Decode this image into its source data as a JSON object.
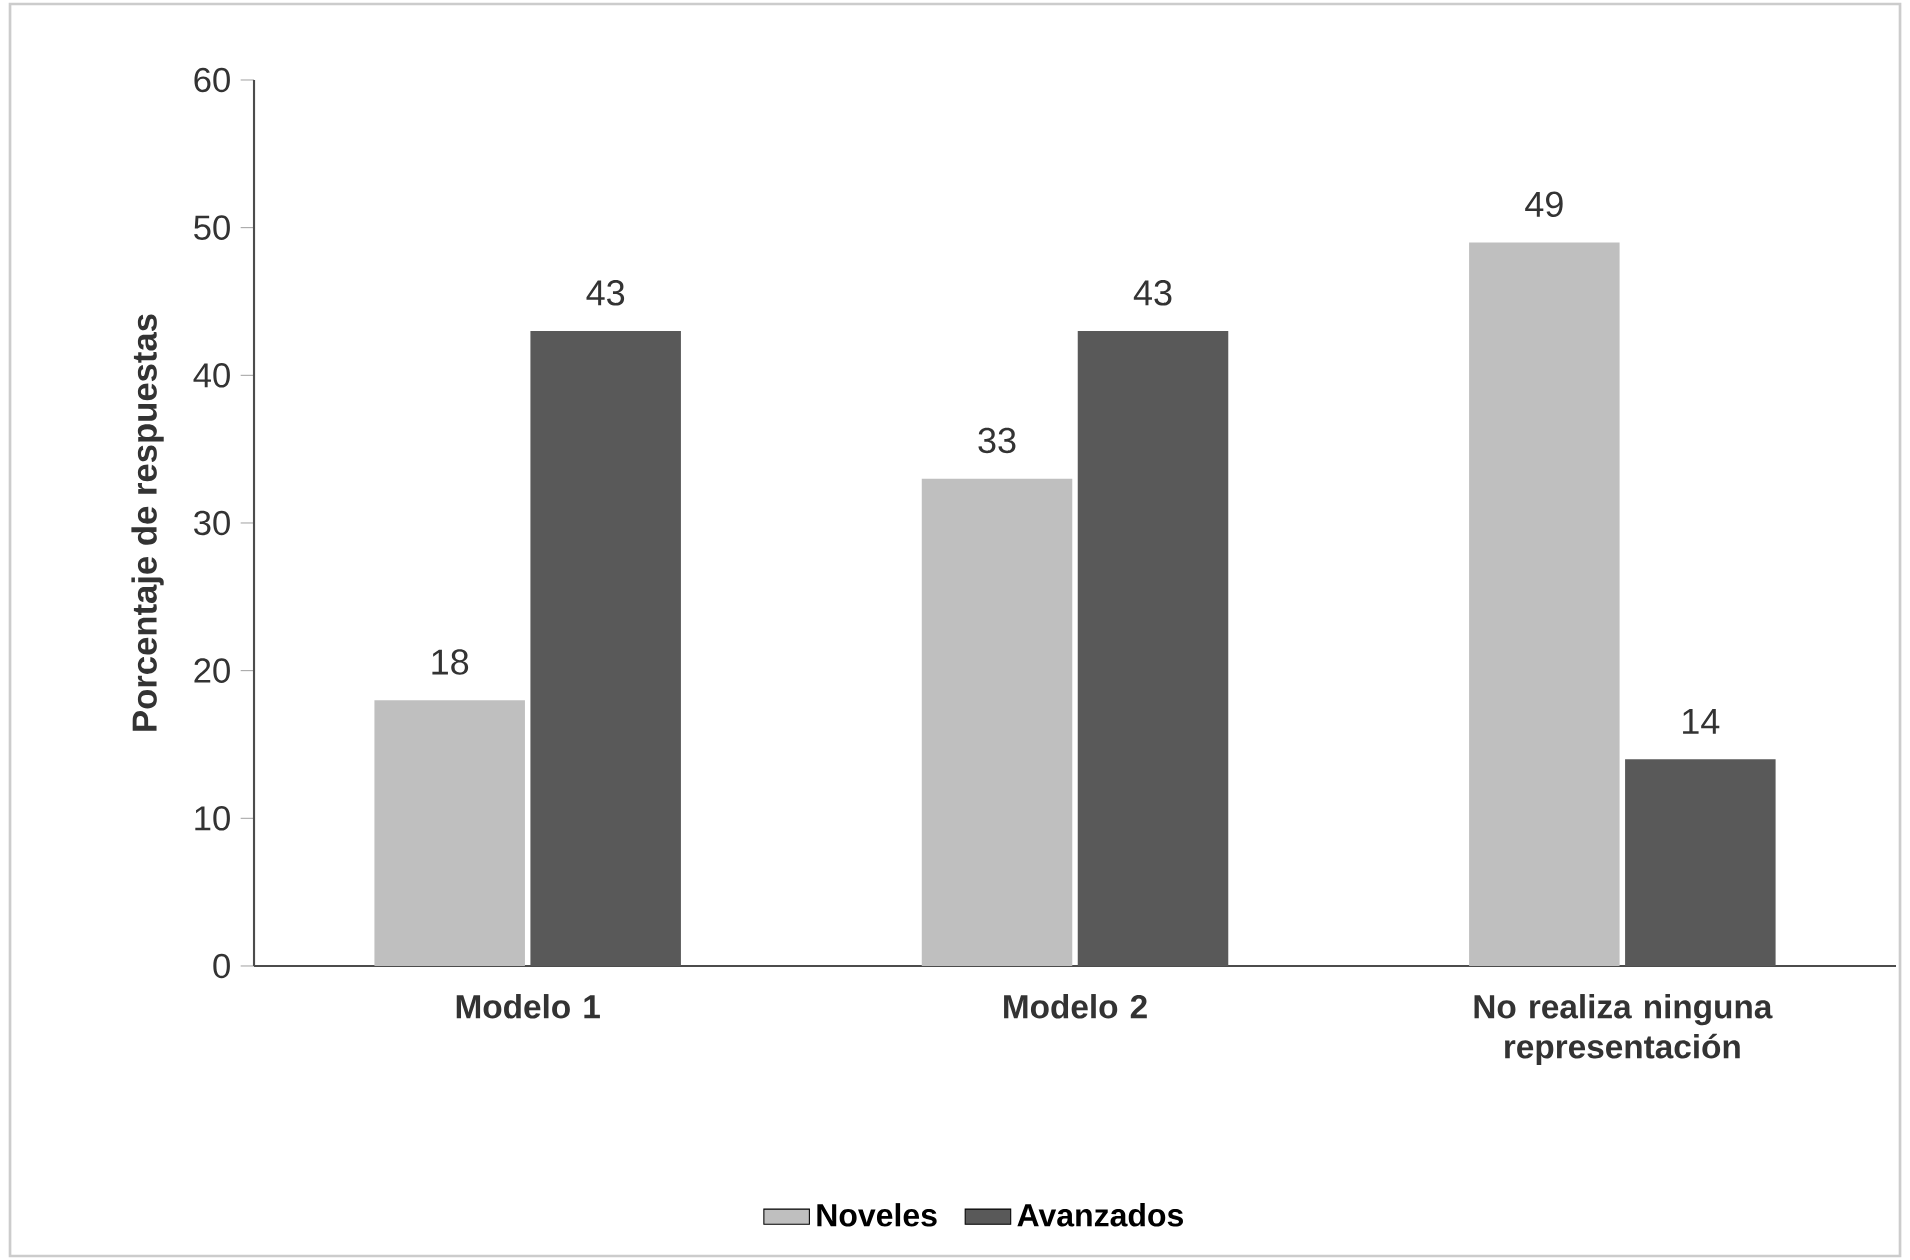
{
  "chart_data": {
    "type": "bar",
    "ylabel": "Porcentaje de respuestas",
    "categories": [
      "Modelo 1",
      "Modelo 2",
      "No realiza ninguna representación"
    ],
    "series": [
      {
        "name": "Noveles",
        "color": "#bfbfbf",
        "values": [
          18,
          33,
          49
        ]
      },
      {
        "name": "Avanzados",
        "color": "#595959",
        "values": [
          43,
          43,
          14
        ]
      }
    ],
    "ylim": [
      0,
      60
    ],
    "yticks": [
      0,
      10,
      20,
      30,
      40,
      50,
      60
    ],
    "data_labels": true,
    "legend": "bottom",
    "grid": false
  }
}
